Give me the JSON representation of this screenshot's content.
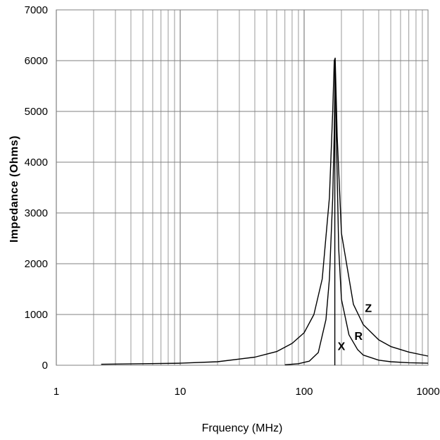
{
  "chart_data": {
    "type": "line",
    "title": "",
    "xlabel": "Frquency (MHz)",
    "ylabel": "Impedance (Ohms)",
    "x_scale": "log",
    "xlim": [
      1,
      1000
    ],
    "ylim": [
      0,
      7000
    ],
    "x_ticks": [
      "1",
      "10",
      "100",
      "1000"
    ],
    "y_ticks": [
      "0",
      "1000",
      "2000",
      "3000",
      "4000",
      "5000",
      "6000",
      "7000"
    ],
    "grid": true,
    "legend": "none",
    "colors": {
      "line": "#000000",
      "grid": "#808080",
      "background": "#ffffff"
    },
    "series": [
      {
        "name": "Z",
        "x": [
          2.3,
          5,
          10,
          20,
          40,
          60,
          80,
          100,
          120,
          140,
          160,
          170,
          175,
          178,
          185,
          200,
          250,
          300,
          400,
          500,
          700,
          1000
        ],
        "values": [
          20,
          30,
          40,
          70,
          160,
          270,
          430,
          640,
          1000,
          1700,
          3300,
          5000,
          6000,
          6050,
          4500,
          2600,
          1200,
          800,
          500,
          370,
          260,
          180
        ]
      },
      {
        "name": "R",
        "x": [
          70,
          90,
          110,
          130,
          150,
          160,
          170,
          175,
          178,
          182,
          190,
          200,
          230,
          270,
          300,
          400,
          500,
          700,
          1000
        ],
        "values": [
          10,
          30,
          80,
          250,
          900,
          1700,
          3300,
          4600,
          5900,
          4500,
          2300,
          1300,
          600,
          310,
          200,
          100,
          70,
          50,
          40
        ]
      },
      {
        "name": "X",
        "x": [
          177,
          177
        ],
        "values": [
          6000,
          0
        ]
      }
    ]
  }
}
